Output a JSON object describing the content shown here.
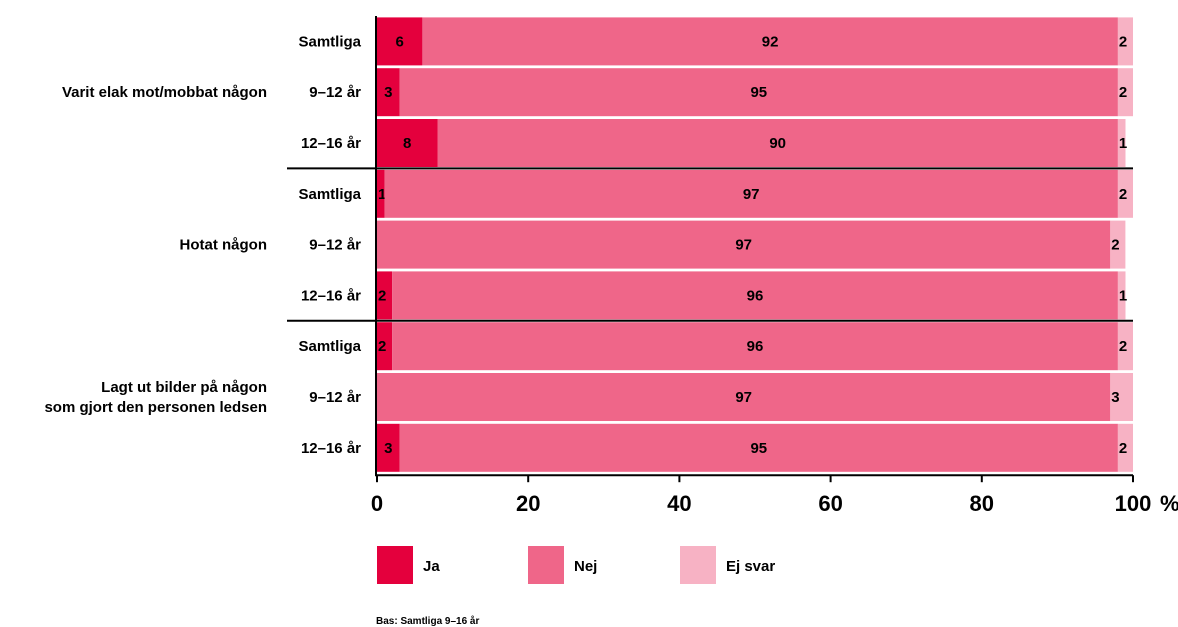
{
  "chart_data": {
    "type": "bar",
    "orientation": "horizontal",
    "stacked": true,
    "groups": [
      {
        "label": [
          "Varit elak mot/mobbat någon"
        ],
        "rows": [
          {
            "label": "Samtliga",
            "values": [
              6,
              92,
              2
            ],
            "text": [
              "6",
              "92",
              "2"
            ]
          },
          {
            "label": "9–12 år",
            "values": [
              3,
              95,
              2
            ],
            "text": [
              "3",
              "95",
              "2"
            ]
          },
          {
            "label": "12–16 år",
            "values": [
              8,
              90,
              1
            ],
            "text": [
              "8",
              "90",
              "1"
            ]
          }
        ]
      },
      {
        "label": [
          "Hotat någon"
        ],
        "rows": [
          {
            "label": "Samtliga",
            "values": [
              1,
              97,
              2
            ],
            "text": [
              "1",
              "97",
              "2"
            ]
          },
          {
            "label": "9–12 år",
            "values": [
              0,
              97,
              2
            ],
            "text": [
              "",
              "97",
              "2"
            ]
          },
          {
            "label": "12–16 år",
            "values": [
              2,
              96,
              1
            ],
            "text": [
              "2",
              "96",
              "1"
            ]
          }
        ]
      },
      {
        "label": [
          "Lagt ut bilder på någon",
          "som gjort den personen ledsen"
        ],
        "rows": [
          {
            "label": "Samtliga",
            "values": [
              2,
              96,
              2
            ],
            "text": [
              "2",
              "96",
              "2"
            ]
          },
          {
            "label": "9–12 år",
            "values": [
              0,
              97,
              3
            ],
            "text": [
              "",
              "97",
              "3"
            ]
          },
          {
            "label": "12–16 år",
            "values": [
              3,
              95,
              2
            ],
            "text": [
              "3",
              "95",
              "2"
            ]
          }
        ]
      }
    ],
    "series": [
      {
        "name": "Ja",
        "color": "#e4003d"
      },
      {
        "name": "Nej",
        "color": "#ef6689"
      },
      {
        "name": "Ej svar",
        "color": "#f7b2c4"
      }
    ],
    "x_ticks": [
      "0",
      "20",
      "40",
      "60",
      "80",
      "100"
    ],
    "x_unit": "%",
    "xlim": [
      0,
      100
    ],
    "legend_position": "bottom",
    "grid": false,
    "note": "Bas: Samtliga 9–16 år"
  }
}
